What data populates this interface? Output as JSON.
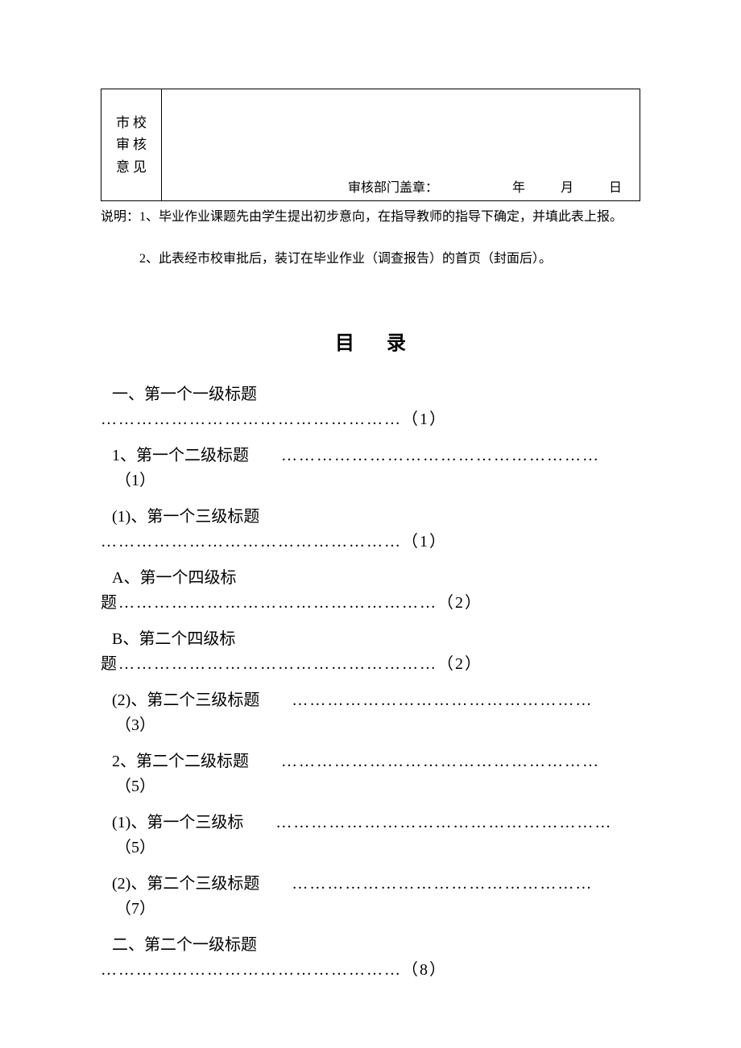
{
  "approval": {
    "left_label_l1": "市校",
    "left_label_l2": "审核",
    "left_label_l3": "意见",
    "stamp_label": "审核部门盖章：",
    "year": "年",
    "month": "月",
    "day": "日"
  },
  "notes": {
    "note1": "说明：1、毕业作业课题先由学生提出初步意向，在指导教师的指导下确定，并填此表上报。",
    "note2": "2、此表经市校审批后，装订在毕业作业（调查报告）的首页（封面后）。"
  },
  "toc_title": "目录",
  "toc": {
    "e1": {
      "label": "一、第一个一级标题",
      "dots": "……………………………………………（1）"
    },
    "e2": {
      "label": "1、第一个二级标题",
      "dots": "………………………………………………",
      "page": "（1）"
    },
    "e3": {
      "label": "(1)、第一个三级标题",
      "dots": "……………………………………………（1）"
    },
    "e4": {
      "label_l1": "A、第一个四级标",
      "label_l2": "题………………………………………………（2）"
    },
    "e5": {
      "label_l1": "B、第二个四级标",
      "label_l2": "题………………………………………………（2）"
    },
    "e6": {
      "label": "(2)、第二个三级标题",
      "dots": "……………………………………………",
      "page": "（3）"
    },
    "e7": {
      "label": "2、第二个二级标题",
      "dots": "………………………………………………",
      "page": "（5）"
    },
    "e8": {
      "label": "(1)、第一个三级标",
      "dots": "…………………………………………………",
      "page": "（5）"
    },
    "e9": {
      "label": "(2)、第二个三级标题",
      "dots": "……………………………………………",
      "page": "（7）"
    },
    "e10": {
      "label": "二、第二个一级标题",
      "dots": "……………………………………………（8）"
    }
  }
}
